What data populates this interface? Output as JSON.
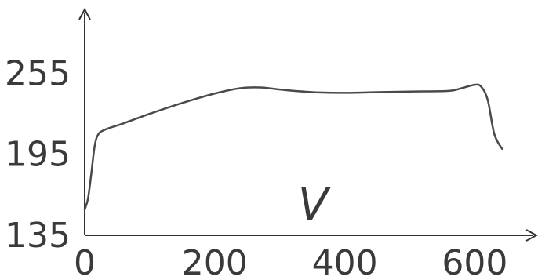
{
  "chart_data": {
    "type": "line",
    "title": "",
    "xlabel": "",
    "ylabel": "",
    "annotation": "V",
    "xlim": [
      0,
      690
    ],
    "ylim": [
      135,
      300
    ],
    "x_ticks": [
      0,
      200,
      400,
      600
    ],
    "y_ticks": [
      135,
      195,
      255
    ],
    "x_tick_labels": [
      "0",
      "200",
      "400",
      "600"
    ],
    "y_tick_labels": [
      "135",
      "195",
      "255"
    ],
    "grid": false,
    "legend": "none",
    "colors": {
      "line": "#4a4a4a",
      "axis": "#333333",
      "text": "#3a3a3a"
    },
    "series": [
      {
        "x": [
          0,
          5,
          10,
          15,
          20,
          30,
          60,
          100,
          150,
          200,
          240,
          270,
          300,
          350,
          400,
          450,
          500,
          560,
          580,
          600,
          610,
          620,
          630,
          642
        ],
        "y": [
          154,
          162,
          180,
          200,
          209,
          213,
          218,
          225,
          233,
          240,
          244,
          244.5,
          243,
          241,
          240.5,
          241,
          241.5,
          242,
          244,
          246.5,
          245,
          235,
          210,
          199
        ]
      }
    ]
  }
}
